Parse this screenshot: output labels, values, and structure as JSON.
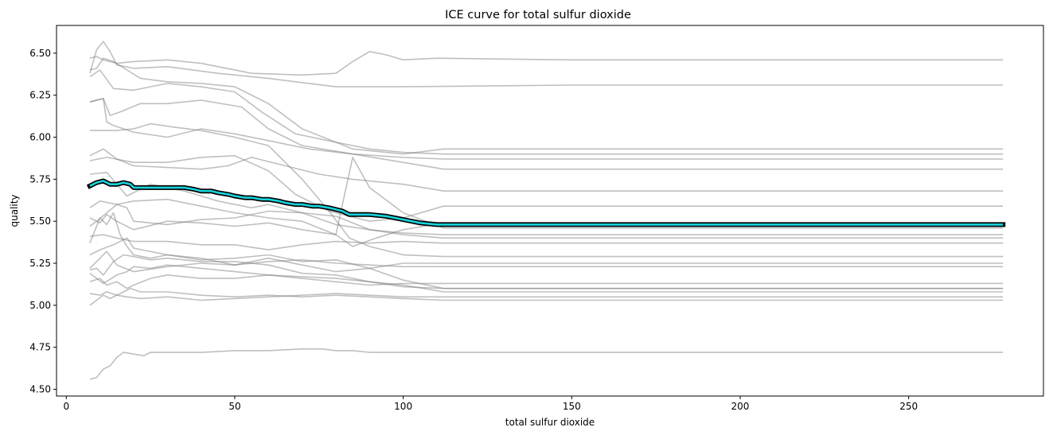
{
  "chart_data": {
    "type": "line",
    "title": "ICE curve for total sulfur dioxide",
    "xlabel": "total sulfur dioxide",
    "ylabel": "quality",
    "xlim": [
      -2.9,
      290
    ],
    "ylim": [
      4.46,
      6.665
    ],
    "xticks": [
      0,
      50,
      100,
      150,
      200,
      250
    ],
    "yticks": [
      4.5,
      4.75,
      5.0,
      5.25,
      5.5,
      5.75,
      6.0,
      6.25,
      6.5
    ],
    "ytick_labels": [
      "4.50",
      "4.75",
      "5.00",
      "5.25",
      "5.50",
      "5.75",
      "6.00",
      "6.25",
      "6.50"
    ],
    "grid": false,
    "legend": "none",
    "colors": {
      "ice": "#a0a0a0",
      "pd_fill": "#17d4de",
      "pd_edge": "#000000"
    },
    "series_ice": [
      {
        "x": [
          7,
          9,
          11,
          15,
          20,
          30,
          40,
          55,
          70,
          80,
          85,
          90,
          95,
          100,
          110,
          150,
          200,
          278
        ],
        "y": [
          6.47,
          6.48,
          6.46,
          6.44,
          6.45,
          6.46,
          6.44,
          6.38,
          6.37,
          6.38,
          6.45,
          6.51,
          6.49,
          6.46,
          6.47,
          6.46,
          6.46,
          6.46
        ]
      },
      {
        "x": [
          7,
          9,
          11,
          13,
          15,
          20,
          30,
          45,
          60,
          80,
          100,
          150,
          200,
          278
        ],
        "y": [
          6.38,
          6.52,
          6.57,
          6.51,
          6.43,
          6.41,
          6.42,
          6.38,
          6.35,
          6.3,
          6.3,
          6.31,
          6.31,
          6.31
        ]
      },
      {
        "x": [
          7,
          9,
          11,
          14,
          18,
          22,
          30,
          40,
          50,
          60,
          70,
          85,
          100,
          112,
          150,
          278
        ],
        "y": [
          6.4,
          6.41,
          6.47,
          6.45,
          6.4,
          6.35,
          6.33,
          6.32,
          6.3,
          6.2,
          6.05,
          5.93,
          5.9,
          5.93,
          5.93,
          5.93
        ]
      },
      {
        "x": [
          7,
          10,
          14,
          20,
          30,
          40,
          50,
          58,
          68,
          80,
          90,
          100,
          112,
          150,
          278
        ],
        "y": [
          6.36,
          6.4,
          6.29,
          6.28,
          6.32,
          6.3,
          6.27,
          6.15,
          6.02,
          5.97,
          5.93,
          5.91,
          5.9,
          5.9,
          5.9
        ]
      },
      {
        "x": [
          7,
          11,
          13,
          16,
          22,
          30,
          40,
          52,
          60,
          70,
          85,
          100,
          112,
          150,
          278
        ],
        "y": [
          6.21,
          6.23,
          6.13,
          6.15,
          6.2,
          6.2,
          6.22,
          6.18,
          6.05,
          5.95,
          5.9,
          5.88,
          5.87,
          5.87,
          5.87
        ]
      },
      {
        "x": [
          7,
          11,
          12,
          14,
          20,
          30,
          40,
          50,
          60,
          72,
          85,
          100,
          112,
          150,
          278
        ],
        "y": [
          6.21,
          6.23,
          6.09,
          6.07,
          6.03,
          6.0,
          6.05,
          6.02,
          5.98,
          5.93,
          5.9,
          5.85,
          5.81,
          5.81,
          5.81
        ]
      },
      {
        "x": [
          7,
          15,
          20,
          25,
          32,
          40,
          50,
          60,
          70,
          78,
          84,
          90,
          100,
          112,
          150,
          278
        ],
        "y": [
          6.04,
          6.04,
          6.05,
          6.08,
          6.06,
          6.04,
          6.0,
          5.95,
          5.75,
          5.56,
          5.4,
          5.35,
          5.3,
          5.29,
          5.29,
          5.29
        ]
      },
      {
        "x": [
          7,
          11,
          15,
          20,
          30,
          40,
          48,
          55,
          65,
          75,
          85,
          100,
          112,
          150,
          278
        ],
        "y": [
          5.89,
          5.93,
          5.87,
          5.83,
          5.82,
          5.81,
          5.83,
          5.88,
          5.83,
          5.78,
          5.75,
          5.72,
          5.68,
          5.68,
          5.68
        ]
      },
      {
        "x": [
          7,
          12,
          20,
          30,
          40,
          50,
          60,
          68,
          78,
          90,
          100,
          112,
          150,
          278
        ],
        "y": [
          5.86,
          5.88,
          5.85,
          5.85,
          5.88,
          5.89,
          5.8,
          5.66,
          5.56,
          5.5,
          5.52,
          5.59,
          5.59,
          5.59
        ]
      },
      {
        "x": [
          7,
          12,
          18,
          25,
          35,
          45,
          55,
          60,
          70,
          80,
          90,
          100,
          112,
          150,
          278
        ],
        "y": [
          5.78,
          5.79,
          5.65,
          5.72,
          5.68,
          5.62,
          5.58,
          5.6,
          5.55,
          5.48,
          5.45,
          5.43,
          5.42,
          5.42,
          5.42
        ]
      },
      {
        "x": [
          7,
          10,
          15,
          20,
          30,
          40,
          50,
          60,
          70,
          80,
          85,
          90,
          100,
          112,
          150,
          278
        ],
        "y": [
          5.58,
          5.62,
          5.6,
          5.62,
          5.63,
          5.59,
          5.55,
          5.52,
          5.5,
          5.42,
          5.88,
          5.7,
          5.55,
          5.46,
          5.46,
          5.46
        ]
      },
      {
        "x": [
          7,
          10,
          12,
          15,
          20,
          30,
          40,
          50,
          60,
          70,
          80,
          85,
          92,
          100,
          112,
          150,
          278
        ],
        "y": [
          5.52,
          5.49,
          5.54,
          5.5,
          5.45,
          5.5,
          5.49,
          5.47,
          5.49,
          5.45,
          5.42,
          5.35,
          5.4,
          5.45,
          5.49,
          5.49,
          5.49
        ]
      },
      {
        "x": [
          7,
          9,
          12,
          15,
          18,
          20,
          30,
          40,
          50,
          60,
          70,
          80,
          90,
          100,
          112,
          150,
          278
        ],
        "y": [
          5.47,
          5.5,
          5.55,
          5.6,
          5.58,
          5.5,
          5.48,
          5.51,
          5.52,
          5.56,
          5.55,
          5.53,
          5.45,
          5.42,
          5.4,
          5.4,
          5.4
        ]
      },
      {
        "x": [
          7,
          11,
          15,
          20,
          30,
          40,
          50,
          60,
          70,
          80,
          90,
          100,
          112,
          150,
          278
        ],
        "y": [
          5.41,
          5.42,
          5.4,
          5.38,
          5.38,
          5.36,
          5.36,
          5.33,
          5.36,
          5.38,
          5.37,
          5.38,
          5.37,
          5.37,
          5.37
        ]
      },
      {
        "x": [
          7,
          10,
          12,
          14,
          16,
          18,
          20,
          25,
          30,
          40,
          50,
          60,
          70,
          80,
          90,
          100,
          112,
          150,
          278
        ],
        "y": [
          5.37,
          5.52,
          5.48,
          5.55,
          5.42,
          5.35,
          5.3,
          5.28,
          5.3,
          5.28,
          5.24,
          5.28,
          5.24,
          5.2,
          5.22,
          5.25,
          5.25,
          5.25,
          5.25
        ]
      },
      {
        "x": [
          7,
          10,
          14,
          18,
          20,
          30,
          40,
          50,
          60,
          70,
          80,
          90,
          100,
          112,
          150,
          278
        ],
        "y": [
          5.3,
          5.33,
          5.36,
          5.4,
          5.34,
          5.3,
          5.27,
          5.28,
          5.3,
          5.26,
          5.27,
          5.22,
          5.15,
          5.1,
          5.1,
          5.1
        ]
      },
      {
        "x": [
          7,
          10,
          12,
          15,
          20,
          30,
          40,
          50,
          60,
          70,
          80,
          90,
          100,
          112,
          150,
          278
        ],
        "y": [
          5.22,
          5.28,
          5.32,
          5.24,
          5.2,
          5.23,
          5.25,
          5.24,
          5.26,
          5.27,
          5.25,
          5.24,
          5.23,
          5.23,
          5.23,
          5.23
        ]
      },
      {
        "x": [
          7,
          9,
          11,
          14,
          17,
          20,
          25,
          30,
          40,
          50,
          60,
          70,
          80,
          90,
          100,
          112,
          150,
          278
        ],
        "y": [
          5.21,
          5.22,
          5.18,
          5.26,
          5.3,
          5.29,
          5.27,
          5.28,
          5.26,
          5.26,
          5.24,
          5.19,
          5.18,
          5.14,
          5.11,
          5.1,
          5.1,
          5.1
        ]
      },
      {
        "x": [
          7,
          11,
          15,
          18,
          20,
          25,
          30,
          40,
          50,
          60,
          70,
          80,
          90,
          100,
          112,
          150,
          278
        ],
        "y": [
          5.19,
          5.13,
          5.18,
          5.2,
          5.23,
          5.22,
          5.24,
          5.22,
          5.2,
          5.18,
          5.16,
          5.14,
          5.12,
          5.13,
          5.13,
          5.13,
          5.13
        ]
      },
      {
        "x": [
          7,
          10,
          12,
          15,
          18,
          20,
          25,
          30,
          40,
          50,
          60,
          70,
          80,
          90,
          100,
          112,
          150,
          278
        ],
        "y": [
          5.14,
          5.16,
          5.12,
          5.14,
          5.1,
          5.12,
          5.16,
          5.18,
          5.16,
          5.16,
          5.18,
          5.17,
          5.16,
          5.14,
          5.12,
          5.08,
          5.08,
          5.08
        ]
      },
      {
        "x": [
          7,
          10,
          12,
          15,
          17,
          19,
          22,
          30,
          40,
          50,
          60,
          70,
          80,
          90,
          100,
          112,
          150,
          278
        ],
        "y": [
          5.07,
          5.06,
          5.08,
          5.06,
          5.08,
          5.1,
          5.08,
          5.08,
          5.06,
          5.05,
          5.06,
          5.05,
          5.06,
          5.05,
          5.04,
          5.03,
          5.03,
          5.03
        ]
      },
      {
        "x": [
          7,
          9,
          11,
          13,
          15,
          18,
          22,
          30,
          40,
          50,
          60,
          70,
          80,
          90,
          100,
          112,
          150,
          278
        ],
        "y": [
          5.0,
          5.03,
          5.06,
          5.04,
          5.06,
          5.05,
          5.04,
          5.05,
          5.03,
          5.04,
          5.05,
          5.06,
          5.07,
          5.06,
          5.05,
          5.05,
          5.05,
          5.05
        ]
      },
      {
        "x": [
          7,
          9,
          11,
          13,
          15,
          17,
          20,
          23,
          25,
          30,
          40,
          50,
          60,
          70,
          76,
          80,
          85,
          90,
          100,
          112,
          150,
          278
        ],
        "y": [
          4.56,
          4.57,
          4.62,
          4.64,
          4.69,
          4.72,
          4.71,
          4.7,
          4.72,
          4.72,
          4.72,
          4.73,
          4.73,
          4.74,
          4.74,
          4.73,
          4.73,
          4.72,
          4.72,
          4.72,
          4.72,
          4.72
        ]
      }
    ],
    "series_pd": {
      "x": [
        7,
        9,
        11,
        13,
        15,
        17,
        19,
        20,
        22,
        25,
        28,
        30,
        33,
        35,
        38,
        40,
        43,
        45,
        48,
        50,
        53,
        55,
        58,
        60,
        63,
        65,
        68,
        70,
        73,
        75,
        78,
        80,
        82,
        84,
        86,
        90,
        95,
        100,
        105,
        110,
        115,
        130,
        150,
        200,
        250,
        278
      ],
      "y": [
        5.71,
        5.73,
        5.74,
        5.72,
        5.72,
        5.73,
        5.72,
        5.7,
        5.7,
        5.7,
        5.7,
        5.7,
        5.7,
        5.7,
        5.69,
        5.68,
        5.68,
        5.67,
        5.66,
        5.65,
        5.64,
        5.64,
        5.63,
        5.63,
        5.62,
        5.61,
        5.6,
        5.6,
        5.59,
        5.59,
        5.58,
        5.57,
        5.56,
        5.54,
        5.54,
        5.54,
        5.53,
        5.51,
        5.49,
        5.48,
        5.48,
        5.48,
        5.48,
        5.48,
        5.48,
        5.48
      ]
    }
  }
}
